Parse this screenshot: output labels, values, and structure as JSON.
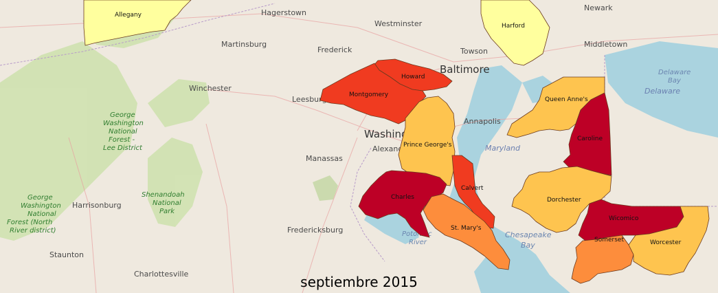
{
  "colors": {
    "land": "#efe9df",
    "water": "#aad3df",
    "forest": "#cfe2b0",
    "level_low": "#ffff9e",
    "level_mid": "#fec44f",
    "level_high": "#fd8d3c",
    "level_higher": "#f03b20",
    "level_highest": "#bd0026"
  },
  "date_label": "septiembre 2015",
  "basemap_labels": {
    "hagerstown": "Hagerstown",
    "westminster": "Westminster",
    "newark": "Newark",
    "martinsburg": "Martinsburg",
    "frederick": "Frederick",
    "towson": "Towson",
    "middletown": "Middletown",
    "baltimore": "Baltimore",
    "winchester": "Winchester",
    "leesburg": "Leesburg",
    "annapolis": "Annapolis",
    "washington": "Washington",
    "alexandria": "Alexand",
    "manassas": "Manassas",
    "harrisonburg": "Harrisonburg",
    "fredericksburg": "Fredericksburg",
    "staunton": "Staunton",
    "charlottesville": "Charlottesville",
    "delaware_state": "Delaware",
    "maryland_state": "Maryland",
    "potomac_river": [
      "Potomac",
      "River"
    ],
    "chesapeake_bay": [
      "Chesapeake",
      "Bay"
    ],
    "delaware_bay": [
      "Delaware",
      "Bay"
    ],
    "gw_forest_lee": [
      "George",
      "Washington",
      "National",
      "Forest -",
      "Lee District"
    ],
    "shenandoah": [
      "Shenandoah",
      "National",
      "Park"
    ],
    "gw_forest_north": [
      "George",
      "Washington",
      "National",
      "Forest (North",
      "River district)"
    ]
  },
  "counties": [
    {
      "name": "Allegany",
      "level": "low"
    },
    {
      "name": "Harford",
      "level": "low"
    },
    {
      "name": "Howard",
      "level": "higher"
    },
    {
      "name": "Montgomery",
      "level": "higher"
    },
    {
      "name": "Prince George's",
      "level": "mid"
    },
    {
      "name": "Queen Anne's",
      "level": "mid"
    },
    {
      "name": "Caroline",
      "level": "highest"
    },
    {
      "name": "Charles",
      "level": "highest"
    },
    {
      "name": "Calvert",
      "level": "higher"
    },
    {
      "name": "St. Mary's",
      "level": "high"
    },
    {
      "name": "Dorchester",
      "level": "mid"
    },
    {
      "name": "Wicomico",
      "level": "highest"
    },
    {
      "name": "Somerset",
      "level": "high"
    },
    {
      "name": "Worcester",
      "level": "mid"
    }
  ]
}
